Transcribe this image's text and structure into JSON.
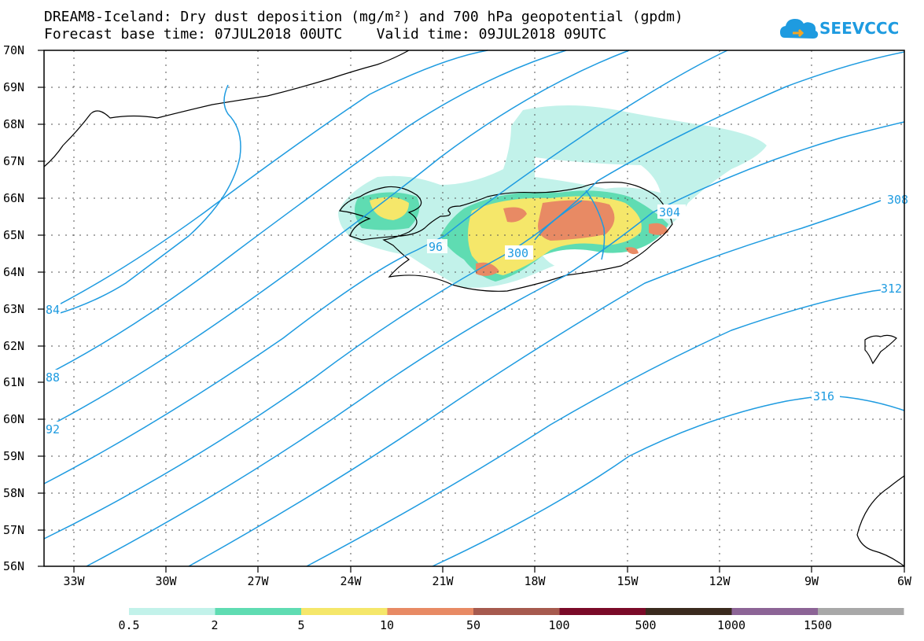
{
  "title_line1": "DREAM8-Iceland: Dry dust deposition (mg/m²) and 700 hPa geopotential (gpdm)",
  "title_line2": "Forecast base time: 07JUL2018 00UTC    Valid time: 09JUL2018 09UTC",
  "logo_text": "SEEVCCC",
  "lat_labels": [
    "70N",
    "69N",
    "68N",
    "67N",
    "66N",
    "65N",
    "64N",
    "63N",
    "62N",
    "61N",
    "60N",
    "59N",
    "58N",
    "57N",
    "56N"
  ],
  "lon_labels": [
    "33W",
    "30W",
    "27W",
    "24W",
    "21W",
    "18W",
    "15W",
    "12W",
    "9W",
    "6W"
  ],
  "contour_labels": [
    "84",
    "88",
    "92",
    "96",
    "300",
    "304",
    "308",
    "312",
    "316"
  ],
  "contour_color": "#1e9be0",
  "legend": {
    "labels": [
      "0.5",
      "2",
      "5",
      "10",
      "50",
      "100",
      "500",
      "1000",
      "1500"
    ],
    "colors": [
      "#c2f2ea",
      "#5fdcb2",
      "#f5e76a",
      "#e88a64",
      "#a65a4e",
      "#7a0a28",
      "#3a2a1e",
      "#8c6496",
      "#a8a8a8"
    ]
  }
}
